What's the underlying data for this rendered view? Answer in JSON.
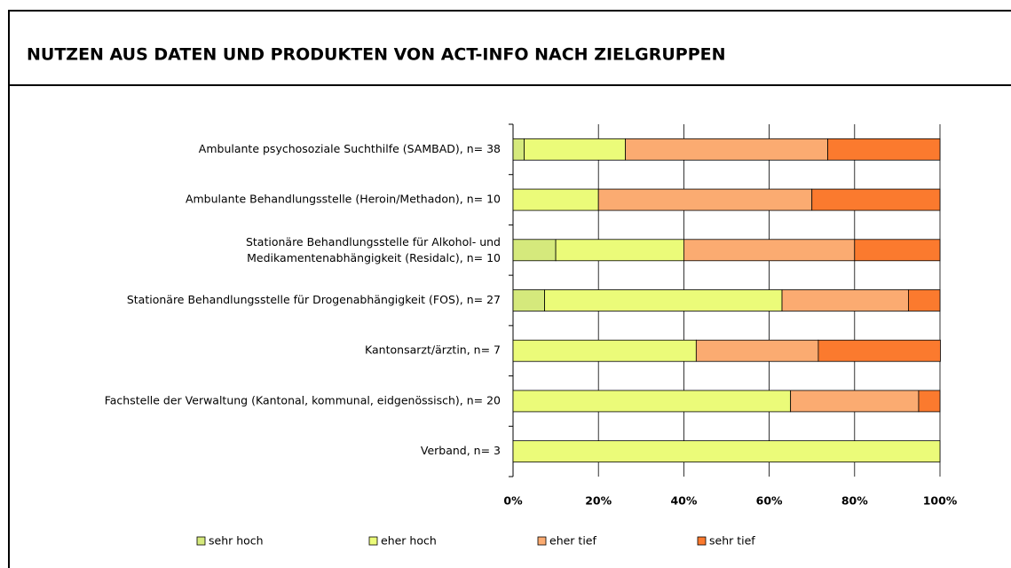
{
  "chart_data": {
    "type": "stacked_barh",
    "title": "NUTZEN AUS DATEN UND PRODUKTEN VON ACT-INFO NACH ZIELGRUPPEN",
    "categories": [
      "Ambulante psychosoziale Suchthilfe (SAMBAD), n= 38",
      "Ambulante Behandlungsstelle (Heroin/Methadon), n= 10",
      "Stationäre Behandlungsstelle für Alkohol- und\nMedikamentenabhängigkeit (Residalc), n= 10",
      "Stationäre Behandlungsstelle für Drogenabhängigkeit (FOS), n= 27",
      "Kantonsarzt/ärztin, n= 7",
      "Fachstelle der Verwaltung (Kantonal, kommunal, eidgenössisch), n= 20",
      "Verband, n= 3"
    ],
    "series": [
      {
        "name": "sehr hoch",
        "color": "#d5e97c",
        "values": [
          2.6,
          0,
          10,
          7.4,
          0,
          0,
          0
        ]
      },
      {
        "name": "eher hoch",
        "color": "#ebfb79",
        "values": [
          23.7,
          20,
          30,
          55.6,
          42.9,
          65,
          100
        ]
      },
      {
        "name": "eher tief",
        "color": "#fbab71",
        "values": [
          47.4,
          50,
          40,
          29.6,
          28.6,
          30,
          0
        ]
      },
      {
        "name": "sehr tief",
        "color": "#fb7a2e",
        "values": [
          26.3,
          30,
          20,
          7.4,
          28.6,
          5,
          0
        ]
      }
    ],
    "xlim": [
      0,
      100
    ],
    "xticks": [
      {
        "value": 0,
        "label": "0%"
      },
      {
        "value": 20,
        "label": "20%"
      },
      {
        "value": 40,
        "label": "40%"
      },
      {
        "value": 60,
        "label": "60%"
      },
      {
        "value": 80,
        "label": "80%"
      },
      {
        "value": 100,
        "label": "100%"
      }
    ],
    "grid": true,
    "legend": "bottom"
  }
}
